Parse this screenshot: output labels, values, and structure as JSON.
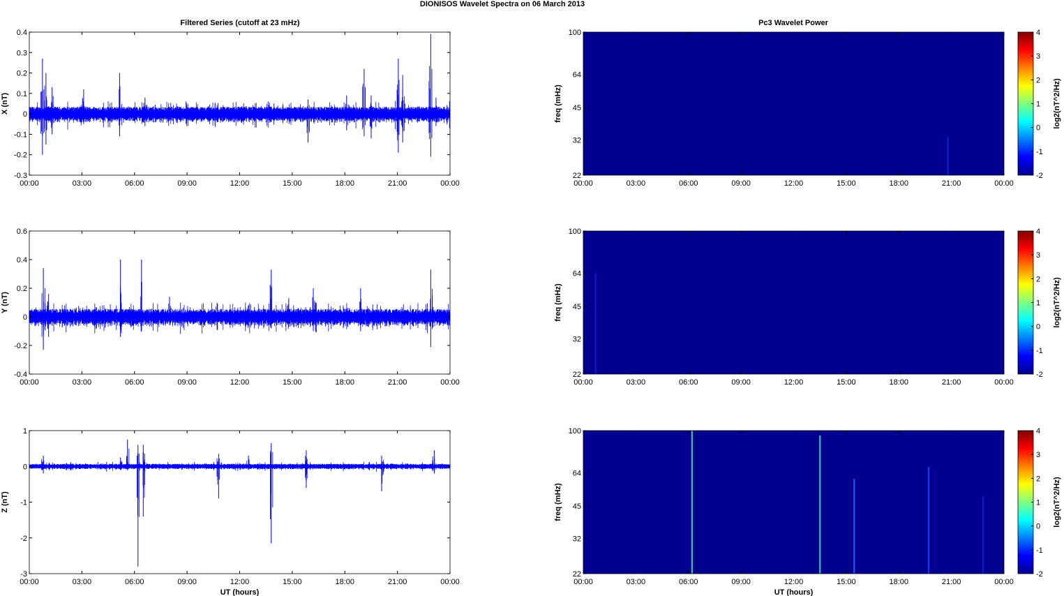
{
  "figure": {
    "title": "DIONISOS Wavelet Spectra on 06 March     2013",
    "left_column_title": "Filtered Series (cutoff at 23 mHz)",
    "right_column_title": "Pc3 Wavelet Power",
    "xlabel": "UT (hours)",
    "colors": {
      "trace": "#0000ff",
      "background": "#00008f",
      "axis": "#000000"
    }
  },
  "chart_data": [
    {
      "type": "line",
      "title": "Filtered Series (cutoff at 23 mHz)",
      "ylabel": "X (nT)",
      "xlabel": "",
      "x_ticks": [
        "00:00",
        "03:00",
        "06:00",
        "09:00",
        "12:00",
        "15:00",
        "18:00",
        "21:00",
        "00:00"
      ],
      "xlim_hours": [
        0,
        24
      ],
      "ylim": [
        -0.3,
        0.4
      ],
      "y_ticks": [
        -0.3,
        -0.2,
        -0.1,
        0,
        0.1,
        0.2,
        0.3,
        0.4
      ],
      "y_tick_labels": [
        "-0.3",
        "-0.2",
        "-0.1",
        "0",
        "0.1",
        "0.2",
        "0.3",
        "0.4"
      ],
      "baseline_amplitude": 0.025,
      "spikes": [
        {
          "t": 0.75,
          "max": 0.27,
          "min": -0.2
        },
        {
          "t": 0.95,
          "max": 0.2,
          "min": -0.15
        },
        {
          "t": 1.3,
          "max": 0.13,
          "min": -0.1
        },
        {
          "t": 3.1,
          "max": 0.12,
          "min": -0.05
        },
        {
          "t": 5.15,
          "max": 0.2,
          "min": -0.11
        },
        {
          "t": 6.6,
          "max": 0.08,
          "min": -0.06
        },
        {
          "t": 15.9,
          "max": 0.07,
          "min": -0.14
        },
        {
          "t": 18.1,
          "max": 0.09,
          "min": -0.08
        },
        {
          "t": 19.1,
          "max": 0.22,
          "min": -0.11
        },
        {
          "t": 19.5,
          "max": 0.09,
          "min": -0.12
        },
        {
          "t": 21.05,
          "max": 0.27,
          "min": -0.19
        },
        {
          "t": 21.3,
          "max": 0.19,
          "min": -0.14
        },
        {
          "t": 22.9,
          "max": 0.39,
          "min": -0.21
        },
        {
          "t": 23.2,
          "max": 0.08,
          "min": -0.06
        }
      ]
    },
    {
      "type": "heatmap",
      "title": "Pc3 Wavelet Power",
      "ylabel": "freq (mHz)",
      "colorbar_label": "log2(nT^2/Hz)",
      "colorbar_range": [
        -2,
        4
      ],
      "colorbar_ticks": [
        "4",
        "3",
        "2",
        "1",
        "0",
        "-1",
        "-2"
      ],
      "y_scale": "log",
      "ylim": [
        22,
        100
      ],
      "y_ticks": [
        22,
        32,
        45,
        64,
        100
      ],
      "x_ticks": [
        "00:00",
        "03:00",
        "06:00",
        "09:00",
        "12:00",
        "15:00",
        "18:00",
        "21:00",
        "00:00"
      ],
      "xlim_hours": [
        0,
        24
      ],
      "streaks": [
        {
          "t": 20.8,
          "f_top": 33,
          "color": "#1020d0"
        }
      ]
    },
    {
      "type": "line",
      "title": "",
      "ylabel": "Y (nT)",
      "xlabel": "",
      "x_ticks": [
        "00:00",
        "03:00",
        "06:00",
        "09:00",
        "12:00",
        "15:00",
        "18:00",
        "21:00",
        "00:00"
      ],
      "xlim_hours": [
        0,
        24
      ],
      "ylim": [
        -0.4,
        0.6
      ],
      "y_ticks": [
        -0.4,
        -0.2,
        0,
        0.2,
        0.4,
        0.6
      ],
      "y_tick_labels": [
        "-0.4",
        "-0.2",
        "0",
        "0.2",
        "0.4",
        "0.6"
      ],
      "baseline_amplitude": 0.04,
      "spikes": [
        {
          "t": 0.8,
          "max": 0.34,
          "min": -0.23
        },
        {
          "t": 1.1,
          "max": 0.16,
          "min": -0.14
        },
        {
          "t": 5.2,
          "max": 0.4,
          "min": -0.14
        },
        {
          "t": 6.4,
          "max": 0.4,
          "min": -0.1
        },
        {
          "t": 8.0,
          "max": 0.14,
          "min": -0.06
        },
        {
          "t": 13.8,
          "max": 0.33,
          "min": -0.08
        },
        {
          "t": 14.8,
          "max": 0.13,
          "min": -0.07
        },
        {
          "t": 16.2,
          "max": 0.2,
          "min": -0.1
        },
        {
          "t": 18.9,
          "max": 0.2,
          "min": -0.1
        },
        {
          "t": 22.9,
          "max": 0.33,
          "min": -0.21
        }
      ]
    },
    {
      "type": "heatmap",
      "title": "",
      "ylabel": "freq (mHz)",
      "colorbar_label": "log2(nT^2/Hz)",
      "colorbar_range": [
        -2,
        4
      ],
      "colorbar_ticks": [
        "4",
        "3",
        "2",
        "1",
        "0",
        "-1",
        "-2"
      ],
      "y_scale": "log",
      "ylim": [
        22,
        100
      ],
      "y_ticks": [
        22,
        32,
        45,
        64,
        100
      ],
      "x_ticks": [
        "00:00",
        "03:00",
        "06:00",
        "09:00",
        "12:00",
        "15:00",
        "18:00",
        "21:00",
        "00:00"
      ],
      "xlim_hours": [
        0,
        24
      ],
      "streaks": [
        {
          "t": 0.7,
          "f_top": 64,
          "color": "#1020c8"
        }
      ]
    },
    {
      "type": "line",
      "title": "",
      "ylabel": "Z (nT)",
      "xlabel": "UT (hours)",
      "x_ticks": [
        "00:00",
        "03:00",
        "06:00",
        "09:00",
        "12:00",
        "15:00",
        "18:00",
        "21:00",
        "00:00"
      ],
      "xlim_hours": [
        0,
        24
      ],
      "ylim": [
        -3,
        1
      ],
      "y_ticks": [
        -3,
        -2,
        -1,
        0,
        1
      ],
      "y_tick_labels": [
        "-3",
        "-2",
        "-1",
        "0",
        "1"
      ],
      "baseline_amplitude": 0.05,
      "spikes": [
        {
          "t": 0.8,
          "max": 0.3,
          "min": -0.2
        },
        {
          "t": 5.2,
          "max": 0.25,
          "min": -0.1
        },
        {
          "t": 5.6,
          "max": 0.75,
          "min": -0.1
        },
        {
          "t": 6.2,
          "max": 0.6,
          "min": -2.8
        },
        {
          "t": 6.5,
          "max": 0.6,
          "min": -1.4
        },
        {
          "t": 10.8,
          "max": 0.35,
          "min": -0.9
        },
        {
          "t": 12.5,
          "max": 0.3,
          "min": -0.1
        },
        {
          "t": 13.8,
          "max": 0.65,
          "min": -2.15
        },
        {
          "t": 15.8,
          "max": 0.45,
          "min": -0.6
        },
        {
          "t": 20.1,
          "max": 0.3,
          "min": -0.7
        },
        {
          "t": 23.1,
          "max": 0.45,
          "min": -0.2
        }
      ]
    },
    {
      "type": "heatmap",
      "title": "",
      "ylabel": "freq (mHz)",
      "xlabel": "UT (hours)",
      "colorbar_label": "log2(nT^2/Hz)",
      "colorbar_range": [
        -2,
        4
      ],
      "colorbar_ticks": [
        "4",
        "3",
        "2",
        "1",
        "0",
        "-1",
        "-2"
      ],
      "y_scale": "log",
      "ylim": [
        22,
        100
      ],
      "y_ticks": [
        22,
        32,
        45,
        64,
        100
      ],
      "x_ticks": [
        "00:00",
        "03:00",
        "06:00",
        "09:00",
        "12:00",
        "15:00",
        "18:00",
        "21:00",
        "00:00"
      ],
      "xlim_hours": [
        0,
        24
      ],
      "streaks": [
        {
          "t": 6.2,
          "f_top": 100,
          "color": "#40d0b0"
        },
        {
          "t": 13.5,
          "f_top": 95,
          "color": "#40d0b0"
        },
        {
          "t": 15.45,
          "f_top": 60,
          "color": "#2060ff"
        },
        {
          "t": 19.7,
          "f_top": 68,
          "color": "#1a40f0"
        },
        {
          "t": 22.8,
          "f_top": 50,
          "color": "#1020c8"
        }
      ]
    }
  ]
}
